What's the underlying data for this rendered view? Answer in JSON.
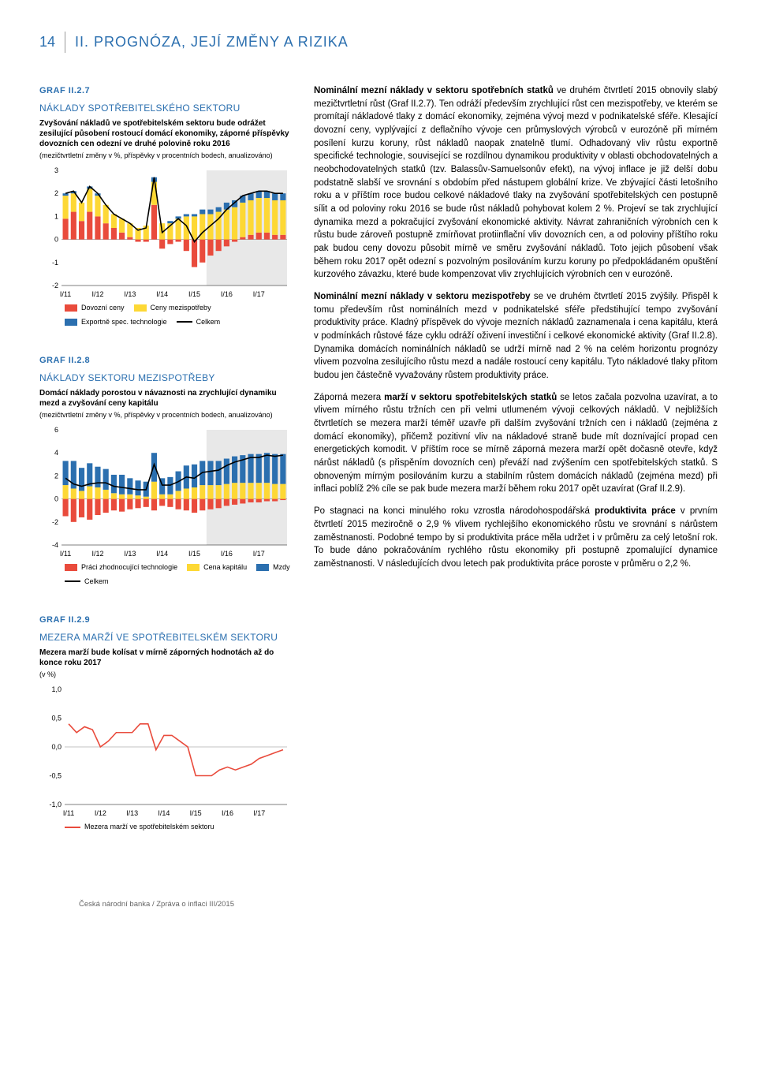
{
  "page_number": "14",
  "section_title": "II. PROGNÓZA, JEJÍ ZMĚNY A RIZIKA",
  "footer": "Česká národní banka / Zpráva o inflaci III/2015",
  "chart1": {
    "label": "GRAF II.2.7",
    "title": "NÁKLADY SPOTŘEBITELSKÉHO SEKTORU",
    "subtitle": "Zvyšování nákladů ve spotřebitelském sektoru bude odrážet zesilující působení rostoucí domácí ekonomiky, záporné příspěvky dovozních cen odezní ve druhé polovině roku 2016",
    "note": "(mezičtvrtletní změny v %, příspěvky v procentních bodech, anualizováno)",
    "ylim": [
      -2,
      3
    ],
    "ytick_step": 1,
    "categories": [
      "I/11",
      "I/12",
      "I/13",
      "I/14",
      "I/15",
      "I/16",
      "I/17"
    ],
    "n_bars": 28,
    "series": {
      "dovozni": {
        "label": "Dovozní ceny",
        "color": "#e94b3c",
        "values": [
          0.9,
          1.2,
          0.8,
          1.2,
          1.0,
          0.7,
          0.5,
          0.3,
          0.1,
          -0.1,
          -0.1,
          1.5,
          -0.4,
          -0.2,
          -0.1,
          -0.5,
          -1.2,
          -1.0,
          -0.7,
          -0.5,
          -0.3,
          -0.1,
          0.1,
          0.2,
          0.3,
          0.3,
          0.2,
          0.2
        ]
      },
      "ceny_mezi": {
        "label": "Ceny mezispotřeby",
        "color": "#fdd835",
        "values": [
          1.0,
          0.8,
          0.8,
          1.0,
          0.9,
          0.8,
          0.6,
          0.6,
          0.6,
          0.5,
          0.6,
          1.0,
          0.7,
          0.7,
          0.9,
          1.0,
          1.0,
          1.1,
          1.1,
          1.2,
          1.3,
          1.4,
          1.5,
          1.5,
          1.5,
          1.5,
          1.5,
          1.5
        ]
      },
      "export": {
        "label": "Exportně spec. technologie",
        "color": "#2b6faf",
        "values": [
          0.1,
          0.1,
          0.0,
          0.1,
          0.1,
          0.0,
          0.0,
          0.0,
          0.0,
          0.0,
          0.0,
          0.2,
          0.0,
          0.1,
          0.1,
          0.1,
          0.1,
          0.2,
          0.2,
          0.2,
          0.3,
          0.3,
          0.3,
          0.3,
          0.3,
          0.3,
          0.3,
          0.3
        ]
      },
      "celkem": {
        "label": "Celkem",
        "color": "#000000",
        "values": [
          2.0,
          2.1,
          1.6,
          2.3,
          2.0,
          1.5,
          1.1,
          0.9,
          0.7,
          0.4,
          0.5,
          2.7,
          0.3,
          0.6,
          0.9,
          0.6,
          -0.1,
          0.3,
          0.6,
          0.9,
          1.3,
          1.6,
          1.9,
          2.0,
          2.1,
          2.1,
          2.0,
          2.0
        ]
      }
    },
    "forecast_start_idx": 18,
    "background_color": "#ffffff",
    "forecast_bg": "#e8e8e8"
  },
  "chart2": {
    "label": "GRAF II.2.8",
    "title": "NÁKLADY SEKTORU MEZISPOTŘEBY",
    "subtitle": "Domácí náklady porostou v návaznosti na zrychlující dynamiku mezd a zvyšování ceny kapitálu",
    "note": "(mezičtvrtletní změny v %, příspěvky v procentních bodech, anualizováno)",
    "ylim": [
      -4,
      6
    ],
    "ytick_step": 2,
    "categories": [
      "I/11",
      "I/12",
      "I/13",
      "I/14",
      "I/15",
      "I/16",
      "I/17"
    ],
    "n_bars": 28,
    "series": {
      "tech": {
        "label": "Práci zhodnocující technologie",
        "color": "#e94b3c",
        "values": [
          -1.5,
          -2.0,
          -1.6,
          -1.8,
          -1.4,
          -1.2,
          -1.0,
          -1.1,
          -0.9,
          -0.8,
          -0.7,
          -1.0,
          -0.6,
          -0.7,
          -0.9,
          -1.0,
          -1.2,
          -1.0,
          -0.9,
          -0.8,
          -0.6,
          -0.5,
          -0.4,
          -0.3,
          -0.3,
          -0.2,
          -0.2,
          -0.1
        ]
      },
      "kapital": {
        "label": "Cena kapitálu",
        "color": "#fdd835",
        "values": [
          1.2,
          0.9,
          0.7,
          1.1,
          1.0,
          0.8,
          0.5,
          0.4,
          0.4,
          0.3,
          0.2,
          1.5,
          0.4,
          0.4,
          0.7,
          0.9,
          1.0,
          1.2,
          1.2,
          1.2,
          1.3,
          1.4,
          1.4,
          1.4,
          1.4,
          1.4,
          1.3,
          1.3
        ]
      },
      "mzdy": {
        "label": "Mzdy",
        "color": "#2b6faf",
        "values": [
          2.1,
          2.4,
          2.0,
          2.0,
          1.8,
          1.8,
          1.6,
          1.7,
          1.4,
          1.3,
          1.3,
          2.5,
          1.4,
          1.5,
          1.7,
          2.0,
          2.0,
          2.1,
          2.1,
          2.1,
          2.2,
          2.3,
          2.4,
          2.5,
          2.5,
          2.6,
          2.6,
          2.6
        ]
      },
      "celkem": {
        "label": "Celkem",
        "color": "#000000",
        "values": [
          1.8,
          1.3,
          1.1,
          1.3,
          1.4,
          1.4,
          1.1,
          1.0,
          0.9,
          0.8,
          0.8,
          3.0,
          1.2,
          1.2,
          1.5,
          1.9,
          1.8,
          2.3,
          2.4,
          2.5,
          2.9,
          3.2,
          3.4,
          3.6,
          3.6,
          3.8,
          3.7,
          3.8
        ]
      }
    },
    "forecast_start_idx": 18,
    "background_color": "#ffffff",
    "forecast_bg": "#e8e8e8"
  },
  "chart3": {
    "label": "GRAF II.2.9",
    "title": "MEZERA MARŽÍ VE SPOTŘEBITELSKÉM SEKTORU",
    "subtitle": "Mezera marží bude kolísat v mírně záporných hodnotách až do konce roku 2017",
    "note": "(v %)",
    "ylim": [
      -1.0,
      1.0
    ],
    "ytick_step": 0.5,
    "categories": [
      "I/11",
      "I/12",
      "I/13",
      "I/14",
      "I/15",
      "I/16",
      "I/17"
    ],
    "series": {
      "mezera": {
        "label": "Mezera marží ve spotřebitelském sektoru",
        "color": "#e94b3c",
        "values": [
          0.4,
          0.25,
          0.35,
          0.3,
          0.0,
          0.1,
          0.25,
          0.25,
          0.25,
          0.4,
          0.4,
          -0.05,
          0.2,
          0.2,
          0.1,
          0.0,
          -0.5,
          -0.5,
          -0.5,
          -0.4,
          -0.35,
          -0.4,
          -0.35,
          -0.3,
          -0.2,
          -0.15,
          -0.1,
          -0.05
        ]
      }
    },
    "background_color": "#ffffff"
  },
  "paragraphs": [
    "<b>Nominální mezní náklady v sektoru spotřebních statků</b> ve druhém čtvrtletí 2015 obnovily slabý mezičtvrtletní růst (Graf II.2.7). Ten odráží především zrychlující růst cen mezispotřeby, ve kterém se promítají nákladové tlaky z domácí ekonomiky, zejména vývoj mezd v podnikatelské sféře. Klesající dovozní ceny, vyplývající z deflačního vývoje cen průmyslových výrobců v eurozóně při mírném posílení kurzu koruny, růst nákladů naopak znatelně tlumí. Odhadovaný vliv růstu exportně specifické technologie, související se rozdílnou dynamikou produktivity v oblasti obchodovatelných a neobchodovatelných statků (tzv. Balassův-Samuelsonův efekt), na vývoj inflace je již delší dobu podstatně slabší ve srovnání s obdobím před nástupem globální krize. Ve zbývající části letošního roku a v příštím roce budou celkové nákladové tlaky na zvyšování spotřebitelských cen postupně sílit a od poloviny roku 2016 se bude růst nákladů pohybovat kolem 2 %. Projeví se tak zrychlující dynamika mezd a pokračující zvyšování ekonomické aktivity. Návrat zahraničních výrobních cen k růstu bude zároveň postupně zmírňovat protiinflační vliv dovozních cen, a od poloviny příštího roku pak budou ceny dovozu působit mírně ve směru zvyšování nákladů. Toto jejich působení však během roku 2017 opět odezní s pozvolným posilováním kurzu koruny po předpokládaném opuštění kurzového závazku, které bude kompenzovat vliv zrychlujících výrobních cen v eurozóně.",
    "<b>Nominální mezní náklady v sektoru mezispotřeby</b> se ve druhém čtvrtletí 2015 zvýšily. Přispěl k tomu především růst nominálních mezd v podnikatelské sféře předstihující tempo zvyšování produktivity práce. Kladný příspěvek do vývoje mezních nákladů zaznamenala i cena kapitálu, která v podmínkách růstové fáze cyklu odráží oživení investiční i celkové ekonomické aktivity (Graf II.2.8). Dynamika domácích nominálních nákladů se udrží mírně nad 2 % na celém horizontu prognózy vlivem pozvolna zesilujícího růstu mezd a nadále rostoucí ceny kapitálu. Tyto nákladové tlaky přitom budou jen částečně vyvažovány růstem produktivity práce.",
    "Záporná mezera <b>marží v sektoru spotřebitelských statků</b> se letos začala pozvolna uzavírat, a to vlivem mírného růstu tržních cen při velmi utlumeném vývoji celkových nákladů. V nejbližších čtvrtletích se mezera marží téměř uzavře při dalším zvyšování tržních cen i nákladů (zejména z domácí ekonomiky), přičemž pozitivní vliv na nákladové straně bude mít doznívající propad cen energetických komodit. V příštím roce se mírně záporná mezera marží opět dočasně otevře, když nárůst nákladů (s přispěním dovozních cen) převáží nad zvýšením cen spotřebitelských statků. S obnoveným mírným posilováním kurzu a stabilním růstem domácích nákladů (zejména mezd) při inflaci poblíž 2% cíle se pak bude mezera marží během roku 2017 opět uzavírat (Graf II.2.9).",
    "Po stagnaci na konci minulého roku vzrostla národohospodářská <b>produktivita práce</b> v prvním čtvrtletí 2015 meziročně o 2,9 % vlivem rychlejšího ekonomického růstu ve srovnání s nárůstem zaměstnanosti. Podobné tempo by si produktivita práce měla udržet i v průměru za celý letošní rok. To bude dáno pokračováním rychlého růstu ekonomiky při postupně zpomalující dynamice zaměstnanosti. V následujících dvou letech pak produktivita práce poroste v průměru o 2,2 %."
  ]
}
